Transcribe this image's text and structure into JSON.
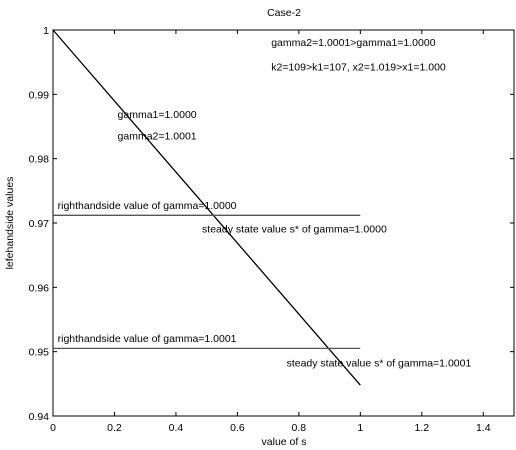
{
  "chart_data": {
    "type": "line",
    "title": "Case-2",
    "xlabel": "value of s",
    "ylabel": "lefehandside values",
    "xlim": [
      0,
      1.5
    ],
    "ylim": [
      0.94,
      1.0
    ],
    "grid": false,
    "x_ticks": [
      "0",
      "0.2",
      "0.4",
      "0.6",
      "0.8",
      "1",
      "1.2",
      "1.4"
    ],
    "y_ticks": [
      "0.94",
      "0.95",
      "0.96",
      "0.97",
      "0.98",
      "0.99",
      "1"
    ],
    "series": [
      {
        "color": "#000000",
        "x": [
          0,
          1
        ],
        "y": [
          1.0,
          0.9448
        ]
      },
      {
        "color": "#555555",
        "x": [
          0,
          1
        ],
        "y": [
          0.9712,
          0.9712
        ]
      },
      {
        "color": "#555555",
        "x": [
          0,
          1
        ],
        "y": [
          0.9505,
          0.9505
        ]
      }
    ],
    "annotations": [
      {
        "text": "gamma2=1.0001>gamma1=1.0000",
        "x": 0.71,
        "y": 0.9975
      },
      {
        "text": "k2=109>k1=107, x2=1.019>x1=1.000",
        "x": 0.71,
        "y": 0.9937
      },
      {
        "text": "gamma1=1.0000",
        "x": 0.21,
        "y": 0.9863
      },
      {
        "text": "gamma2=1.0001",
        "x": 0.21,
        "y": 0.983
      },
      {
        "text": "righthandside value of gamma=1.0000",
        "x": 0.015,
        "y": 0.9722
      },
      {
        "text": "steady state value s* of gamma=1.0000",
        "x": 0.485,
        "y": 0.9685
      },
      {
        "text": "righthandside value of gamma=1.0001",
        "x": 0.015,
        "y": 0.9515
      },
      {
        "text": "steady state value s* of gamma=1.0001",
        "x": 0.76,
        "y": 0.9477
      }
    ]
  }
}
